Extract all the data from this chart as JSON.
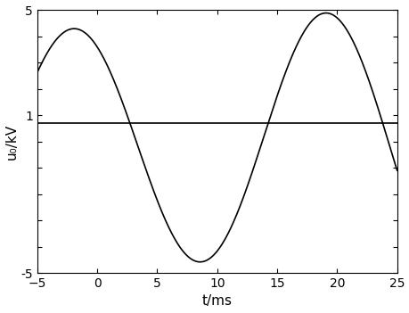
{
  "xlim": [
    -5,
    25
  ],
  "ylim": [
    -5,
    5
  ],
  "xticks": [
    -5,
    0,
    5,
    10,
    15,
    20,
    25
  ],
  "ytick_values": [
    -5,
    -4,
    -3,
    -2,
    -1,
    0,
    1,
    2,
    3,
    4,
    5
  ],
  "ytick_labels": [
    "-5",
    "",
    "",
    "",
    "",
    "",
    "1",
    "",
    "",
    "",
    "5"
  ],
  "xlabel": "t/ms",
  "ylabel": "u₀/kV",
  "hline_y": 0.7,
  "amplitude_start": 4.2,
  "amplitude_end": 5.05,
  "frequency_hz": 47.6,
  "peak1_t_ms": -2.0,
  "t_start": -5,
  "t_end": 25,
  "line_color": "#000000",
  "background_color": "#ffffff",
  "linewidth": 1.2
}
